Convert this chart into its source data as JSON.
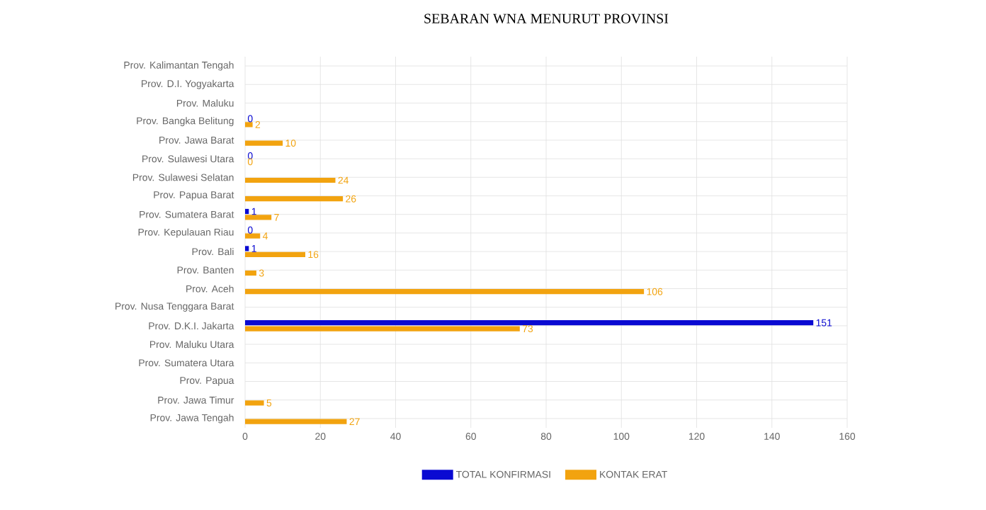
{
  "chart_data": {
    "type": "bar",
    "orientation": "horizontal",
    "title": "SEBARAN WNA MENURUT PROVINSI",
    "categories": [
      "Prov. Kalimantan Tengah",
      "Prov. D.I. Yogyakarta",
      "Prov. Maluku",
      "Prov. Bangka Belitung",
      "Prov. Jawa Barat",
      "Prov. Sulawesi Utara",
      "Prov. Sulawesi Selatan",
      "Prov. Papua Barat",
      "Prov. Sumatera Barat",
      "Prov. Kepulauan Riau",
      "Prov. Bali",
      "Prov. Banten",
      "Prov. Aceh",
      "Prov. Nusa Tenggara Barat",
      "Prov. D.K.I. Jakarta",
      "Prov. Maluku Utara",
      "Prov. Sumatera Utara",
      "Prov. Papua",
      "Prov. Jawa Timur",
      "Prov. Jawa Tengah"
    ],
    "series": [
      {
        "name": "TOTAL KONFIRMASI",
        "color": "#0a0ad2",
        "values": [
          null,
          null,
          null,
          0,
          null,
          0,
          null,
          null,
          1,
          0,
          1,
          null,
          null,
          null,
          151,
          null,
          null,
          null,
          null,
          null
        ]
      },
      {
        "name": "KONTAK ERAT",
        "color": "#f2a30f",
        "values": [
          null,
          null,
          null,
          2,
          10,
          0,
          24,
          26,
          7,
          4,
          16,
          3,
          106,
          null,
          73,
          null,
          null,
          null,
          5,
          27
        ]
      }
    ],
    "xlim": [
      0,
      160
    ],
    "xticks": [
      0,
      20,
      40,
      60,
      80,
      100,
      120,
      140,
      160
    ],
    "grid": true,
    "legend": "bottom",
    "data_labels": true
  }
}
